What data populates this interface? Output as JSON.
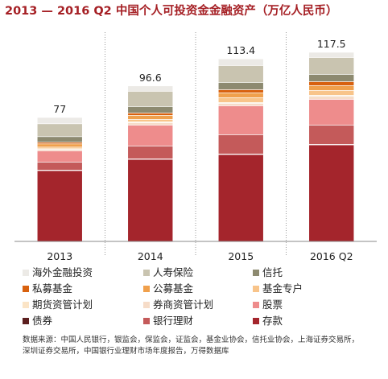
{
  "title": "2013 — 2016 Q2 中国个人可投资金金融资产（万亿人民币）",
  "source": {
    "line1": "数据来源：中国人民银行，银监会，保监会，证监会，基金业协会，信托业协会，上海证券交易所，",
    "line2": "深圳证券交易所，中国银行业理财市场年度报告，万得数据库"
  },
  "chart_data": {
    "type": "bar",
    "stacked": true,
    "categories": [
      "2013",
      "2014",
      "2015",
      "2016 Q2"
    ],
    "totals": [
      77,
      96.6,
      113.4,
      117.5
    ],
    "total_labels": [
      "77",
      "96.6",
      "113.4",
      "117.5"
    ],
    "ylim": [
      0,
      130
    ],
    "title": "2013 — 2016 Q2 中国个人可投资金金融资产（万亿人民币）",
    "xlabel": "",
    "ylabel": "",
    "grid": false,
    "legend_position": "bottom",
    "series": [
      {
        "name": "存款",
        "color": "#a4252c",
        "values": [
          44,
          51,
          54,
          60
        ]
      },
      {
        "name": "债券",
        "color": "#5c1f1f",
        "values": [
          0.3,
          0.3,
          0.3,
          0.3
        ]
      },
      {
        "name": "银行理财",
        "color": "#c45a5a",
        "values": [
          5,
          8,
          12,
          12
        ]
      },
      {
        "name": "股票",
        "color": "#ee8c8c",
        "values": [
          7,
          13,
          18,
          16
        ]
      },
      {
        "name": "券商资管计划",
        "color": "#f6dcc8",
        "values": [
          1,
          1.5,
          1.5,
          2
        ]
      },
      {
        "name": "期货资管计划",
        "color": "#fbe4c6",
        "values": [
          0.3,
          0.5,
          0.5,
          0.5
        ]
      },
      {
        "name": "基金专户",
        "color": "#f8c48a",
        "values": [
          1,
          1.5,
          3,
          3
        ]
      },
      {
        "name": "公募基金",
        "color": "#f0a04c",
        "values": [
          2,
          2.5,
          3,
          3
        ]
      },
      {
        "name": "私募基金",
        "color": "#d8610f",
        "values": [
          1,
          1.5,
          2,
          2.5
        ]
      },
      {
        "name": "信托",
        "color": "#8d8a70",
        "values": [
          3.5,
          4,
          4.5,
          4.5
        ]
      },
      {
        "name": "人寿保险",
        "color": "#c9c4b0",
        "values": [
          8,
          9.5,
          10.5,
          10.5
        ]
      },
      {
        "name": "海外金融投资",
        "color": "#eceae6",
        "values": [
          3.9,
          3.3,
          4.1,
          3.2
        ]
      }
    ]
  },
  "legend": [
    {
      "name": "海外金融投资",
      "color": "#eceae6"
    },
    {
      "name": "人寿保险",
      "color": "#c9c4b0"
    },
    {
      "name": "信托",
      "color": "#8d8a70"
    },
    {
      "name": "私募基金",
      "color": "#d8610f"
    },
    {
      "name": "公募基金",
      "color": "#f0a04c"
    },
    {
      "name": "基金专户",
      "color": "#f8c48a"
    },
    {
      "name": "期货资管计划",
      "color": "#fbe4c6"
    },
    {
      "name": "券商资管计划",
      "color": "#f6dcc8"
    },
    {
      "name": "股票",
      "color": "#ee8c8c"
    },
    {
      "name": "债券",
      "color": "#5c1f1f"
    },
    {
      "name": "银行理财",
      "color": "#c45a5a"
    },
    {
      "name": "存款",
      "color": "#a4252c"
    }
  ]
}
